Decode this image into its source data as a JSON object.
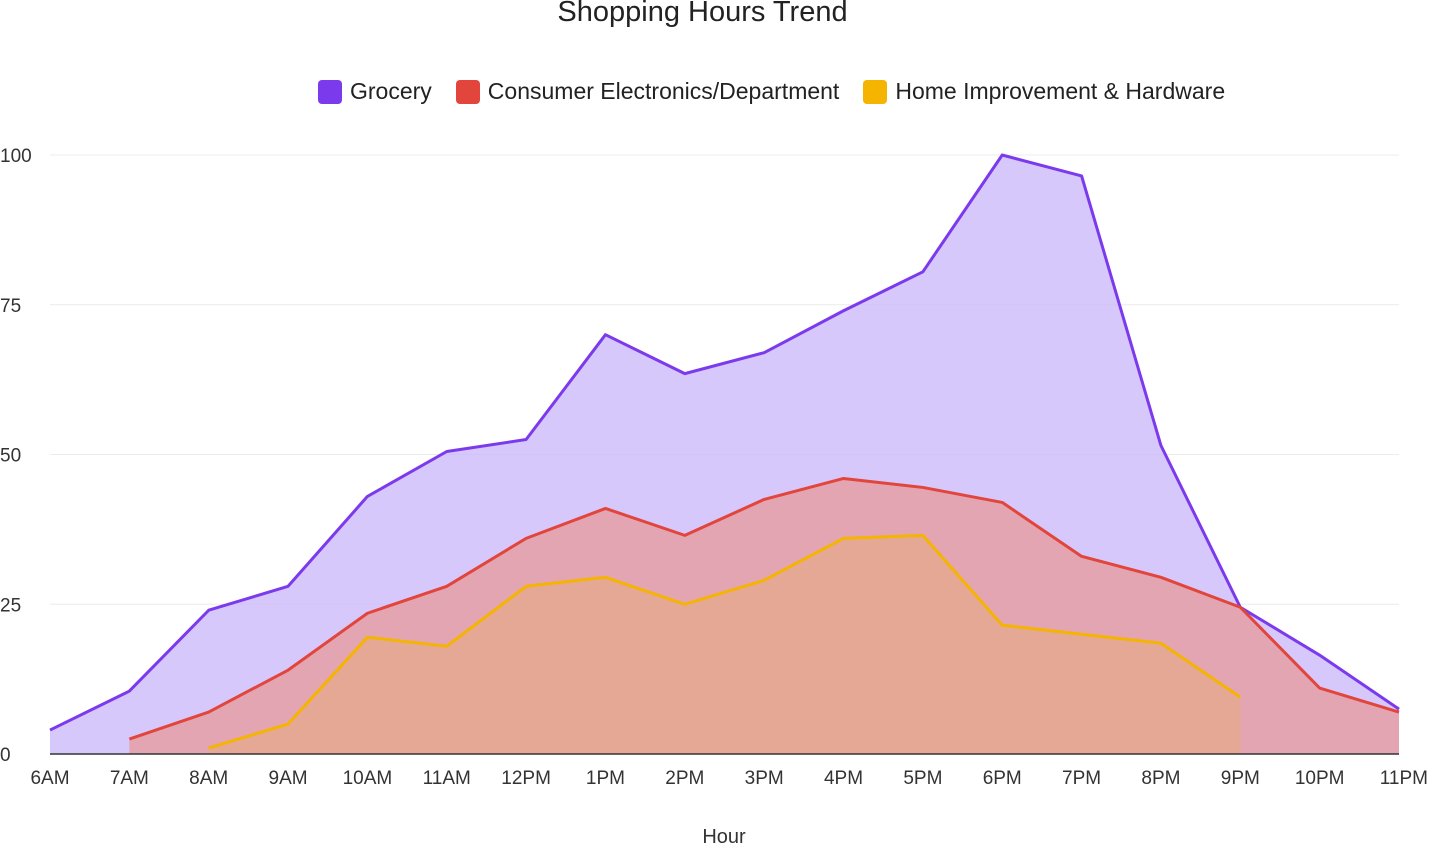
{
  "chart_data": {
    "type": "area",
    "title": "Shopping Hours Trend",
    "xlabel": "Hour",
    "ylabel": "",
    "ylim": [
      0,
      100
    ],
    "yticks": [
      0,
      25,
      50,
      75,
      100
    ],
    "grid": true,
    "legend_position": "top",
    "categories": [
      "6AM",
      "7AM",
      "8AM",
      "9AM",
      "10AM",
      "11AM",
      "12PM",
      "1PM",
      "2PM",
      "3PM",
      "4PM",
      "5PM",
      "6PM",
      "7PM",
      "8PM",
      "9PM",
      "10PM",
      "11PM"
    ],
    "series": [
      {
        "name": "Grocery",
        "color": "#7c3aed",
        "fill": "#c9b5fb",
        "values": [
          4,
          10.5,
          24,
          28,
          43,
          50.5,
          52.5,
          70,
          63.5,
          67,
          74,
          80.5,
          100,
          96.5,
          51.5,
          24.5,
          16.5,
          7.5
        ]
      },
      {
        "name": "Consumer Electronics/Department",
        "color": "#e2453c",
        "fill": "#e79a9a",
        "values": [
          null,
          2.5,
          7,
          14,
          23.5,
          28,
          36,
          41,
          36.5,
          42.5,
          46,
          44.5,
          42,
          33,
          29.5,
          24.5,
          11,
          7
        ]
      },
      {
        "name": "Home Improvement & Hardware",
        "color": "#f4b400",
        "fill": "#e6a989",
        "values": [
          null,
          null,
          1,
          5,
          19.5,
          18,
          28,
          29.5,
          25,
          29,
          36,
          36.5,
          21.5,
          20,
          18.5,
          9.5,
          null,
          null
        ]
      }
    ]
  }
}
